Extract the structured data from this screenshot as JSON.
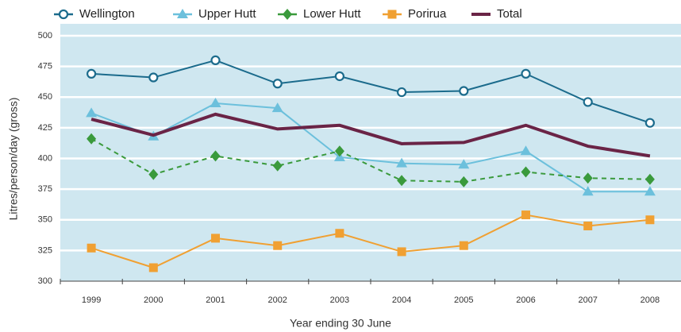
{
  "chart_data": {
    "type": "line",
    "categories": [
      "1999",
      "2000",
      "2001",
      "2002",
      "2003",
      "2004",
      "2005",
      "2006",
      "2007",
      "2008"
    ],
    "series": [
      {
        "name": "Wellington",
        "color": "#1b6b8c",
        "marker": "circle",
        "line_style": "solid",
        "values": [
          469,
          466,
          480,
          461,
          467,
          454,
          455,
          469,
          446,
          429
        ]
      },
      {
        "name": "Upper Hutt",
        "color": "#6cc0dc",
        "marker": "triangle",
        "line_style": "solid",
        "values": [
          437,
          418,
          445,
          441,
          401,
          396,
          395,
          406,
          373,
          373
        ]
      },
      {
        "name": "Lower Hutt",
        "color": "#3a9a3c",
        "marker": "diamond",
        "line_style": "dashed",
        "values": [
          416,
          387,
          402,
          394,
          406,
          382,
          381,
          389,
          384,
          383
        ]
      },
      {
        "name": "Porirua",
        "color": "#f0a032",
        "marker": "square",
        "line_style": "solid",
        "values": [
          327,
          311,
          335,
          329,
          339,
          324,
          329,
          354,
          345,
          350
        ]
      },
      {
        "name": "Total",
        "color": "#6a2446",
        "marker": "none",
        "line_style": "thick",
        "values": [
          432,
          419,
          436,
          424,
          427,
          412,
          413,
          427,
          410,
          402
        ]
      }
    ],
    "ylim": [
      300,
      500
    ],
    "yticks": [
      300,
      325,
      350,
      375,
      400,
      425,
      450,
      475,
      500
    ],
    "grid": true,
    "y_label": "Litres/person/day (gross)",
    "x_label": "Year ending 30 June",
    "legend": "top"
  }
}
